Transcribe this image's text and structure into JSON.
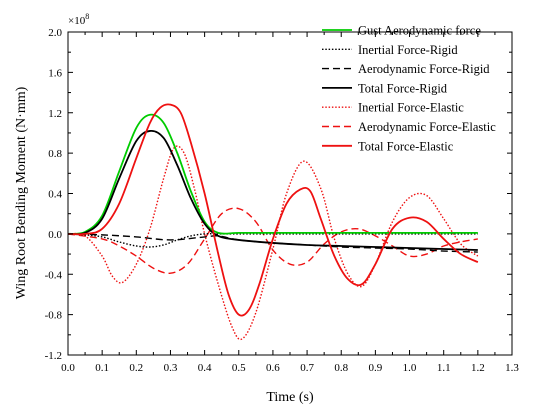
{
  "chart_data": {
    "type": "line",
    "xlabel": "Time (s)",
    "ylabel": "Wing Root Bending Moment (N·mm)",
    "y_multiplier_label": "×10",
    "y_multiplier_exponent": "8",
    "xlim": [
      0.0,
      1.3
    ],
    "ylim": [
      -1.2,
      2.0
    ],
    "x_ticks": [
      0.0,
      0.1,
      0.2,
      0.3,
      0.4,
      0.5,
      0.6,
      0.7,
      0.8,
      0.9,
      1.0,
      1.1,
      1.2,
      1.3
    ],
    "x_tick_labels": [
      "0.0",
      "0.1",
      "0.2",
      "0.3",
      "0.4",
      "0.5",
      "0.6",
      "0.7",
      "0.8",
      "0.9",
      "1.0",
      "1.1",
      "1.2",
      "1.3"
    ],
    "y_ticks": [
      -1.2,
      -0.8,
      -0.4,
      0.0,
      0.4,
      0.8,
      1.2,
      1.6,
      2.0
    ],
    "y_tick_labels": [
      "-1.2",
      "-0.8",
      "-0.4",
      "0.0",
      "0.4",
      "0.8",
      "1.2",
      "1.6",
      "2.0"
    ],
    "grid": false,
    "legend_position": "top-right",
    "series": [
      {
        "name": "Gust Aerodynamic force",
        "color": "#00cc00",
        "dash": "solid",
        "x": [
          0.0,
          0.05,
          0.1,
          0.15,
          0.2,
          0.24,
          0.28,
          0.32,
          0.36,
          0.4,
          0.44,
          0.5,
          0.6,
          0.7,
          0.8,
          0.9,
          1.0,
          1.1,
          1.2
        ],
        "y": [
          0.0,
          0.02,
          0.18,
          0.62,
          1.05,
          1.18,
          1.1,
          0.8,
          0.42,
          0.12,
          0.01,
          0.01,
          0.01,
          0.01,
          0.01,
          0.01,
          0.01,
          0.01,
          0.01
        ]
      },
      {
        "name": "Inertial Force-Rigid",
        "color": "#000000",
        "dash": "dotted",
        "x": [
          0.0,
          0.05,
          0.1,
          0.15,
          0.2,
          0.24,
          0.28,
          0.32,
          0.36,
          0.4,
          0.44,
          0.5,
          0.6,
          0.7,
          0.8,
          0.9,
          1.0,
          1.1,
          1.2
        ],
        "y": [
          0.0,
          -0.01,
          -0.03,
          -0.08,
          -0.12,
          -0.13,
          -0.11,
          -0.06,
          -0.02,
          0.0,
          0.0,
          0.0,
          0.0,
          0.0,
          0.0,
          0.0,
          0.0,
          0.0,
          0.0
        ]
      },
      {
        "name": "Aerodynamic Force-Rigid",
        "color": "#000000",
        "dash": "dashed",
        "x": [
          0.0,
          0.1,
          0.2,
          0.3,
          0.4,
          0.44,
          0.5,
          0.6,
          0.7,
          0.8,
          0.9,
          1.0,
          1.1,
          1.2
        ],
        "y": [
          0.0,
          -0.01,
          -0.03,
          -0.06,
          -0.03,
          -0.02,
          -0.06,
          -0.09,
          -0.11,
          -0.13,
          -0.14,
          -0.15,
          -0.17,
          -0.18
        ]
      },
      {
        "name": "Total Force-Rigid",
        "color": "#000000",
        "dash": "solid",
        "x": [
          0.0,
          0.05,
          0.1,
          0.15,
          0.2,
          0.24,
          0.28,
          0.32,
          0.36,
          0.4,
          0.44,
          0.5,
          0.6,
          0.7,
          0.8,
          0.9,
          1.0,
          1.1,
          1.2
        ],
        "y": [
          0.0,
          0.01,
          0.15,
          0.55,
          0.92,
          1.02,
          0.95,
          0.68,
          0.35,
          0.1,
          -0.02,
          -0.06,
          -0.09,
          -0.11,
          -0.12,
          -0.13,
          -0.14,
          -0.15,
          -0.16
        ]
      },
      {
        "name": "Inertial Force-Elastic",
        "color": "#ee1111",
        "dash": "dotted",
        "x": [
          0.0,
          0.05,
          0.1,
          0.13,
          0.16,
          0.2,
          0.24,
          0.28,
          0.31,
          0.34,
          0.37,
          0.4,
          0.44,
          0.48,
          0.51,
          0.55,
          0.6,
          0.64,
          0.69,
          0.74,
          0.78,
          0.82,
          0.86,
          0.9,
          0.95,
          1.0,
          1.05,
          1.1,
          1.15,
          1.2
        ],
        "y": [
          0.0,
          -0.02,
          -0.22,
          -0.42,
          -0.48,
          -0.3,
          0.05,
          0.55,
          0.85,
          0.8,
          0.45,
          0.0,
          -0.5,
          -0.92,
          -1.04,
          -0.78,
          -0.15,
          0.4,
          0.72,
          0.45,
          -0.05,
          -0.4,
          -0.52,
          -0.3,
          0.12,
          0.36,
          0.38,
          0.15,
          -0.1,
          -0.22
        ]
      },
      {
        "name": "Aerodynamic Force-Elastic",
        "color": "#ee1111",
        "dash": "dashed",
        "x": [
          0.0,
          0.1,
          0.15,
          0.2,
          0.25,
          0.3,
          0.35,
          0.4,
          0.45,
          0.5,
          0.55,
          0.6,
          0.65,
          0.7,
          0.75,
          0.8,
          0.85,
          0.9,
          0.95,
          1.0,
          1.05,
          1.1,
          1.15,
          1.2
        ],
        "y": [
          0.0,
          -0.05,
          -0.12,
          -0.22,
          -0.34,
          -0.39,
          -0.3,
          -0.05,
          0.2,
          0.25,
          0.12,
          -0.16,
          -0.3,
          -0.28,
          -0.1,
          0.02,
          0.05,
          -0.02,
          -0.12,
          -0.22,
          -0.2,
          -0.12,
          -0.08,
          -0.05
        ]
      },
      {
        "name": "Total Force-Elastic",
        "color": "#ee1111",
        "dash": "solid",
        "x": [
          0.0,
          0.05,
          0.1,
          0.15,
          0.2,
          0.24,
          0.27,
          0.3,
          0.33,
          0.36,
          0.4,
          0.44,
          0.47,
          0.5,
          0.53,
          0.56,
          0.6,
          0.64,
          0.68,
          0.71,
          0.74,
          0.78,
          0.82,
          0.86,
          0.9,
          0.95,
          1.0,
          1.05,
          1.1,
          1.15,
          1.2
        ],
        "y": [
          0.0,
          0.0,
          0.05,
          0.3,
          0.75,
          1.1,
          1.25,
          1.28,
          1.2,
          0.9,
          0.4,
          -0.2,
          -0.6,
          -0.8,
          -0.75,
          -0.5,
          -0.05,
          0.3,
          0.44,
          0.42,
          0.15,
          -0.22,
          -0.45,
          -0.5,
          -0.3,
          0.05,
          0.16,
          0.12,
          -0.05,
          -0.2,
          -0.28
        ]
      }
    ]
  }
}
